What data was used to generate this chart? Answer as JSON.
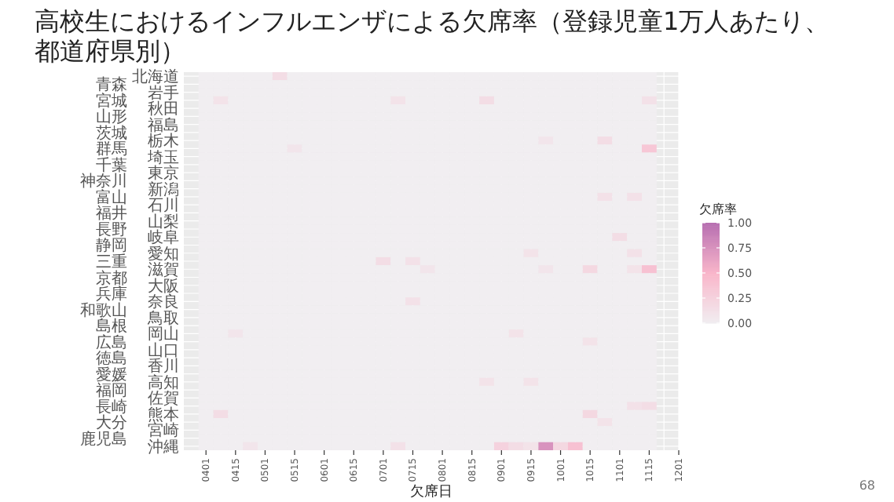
{
  "chart_data": {
    "type": "heatmap",
    "title": "高校生におけるインフルエンザによる欠席率（登録児童1万人あたり、都道府県別）",
    "xlabel": "欠席日",
    "clabel": "欠席率",
    "categories": [
      "0401",
      null,
      "0415",
      null,
      "0501",
      null,
      "0515",
      null,
      "0601",
      null,
      "0615",
      null,
      "0701",
      null,
      "0715",
      null,
      "0801",
      null,
      "0815",
      null,
      "0901",
      null,
      "0915",
      null,
      "1001",
      null,
      "1015",
      null,
      "1101",
      null,
      "1115",
      null,
      "1201"
    ],
    "y_categories": [
      "北海道",
      "青森",
      "岩手",
      "宮城",
      "秋田",
      "山形",
      "福島",
      "茨城",
      "栃木",
      "群馬",
      "埼玉",
      "千葉",
      "東京",
      "神奈川",
      "新潟",
      "富山",
      "石川",
      "福井",
      "山梨",
      "長野",
      "岐阜",
      "静岡",
      "愛知",
      "三重",
      "滋賀",
      "京都",
      "大阪",
      "兵庫",
      "奈良",
      "和歌山",
      "鳥取",
      "島根",
      "岡山",
      "広島",
      "山口",
      "徳島",
      "香川",
      "愛媛",
      "高知",
      "福岡",
      "佐賀",
      "長崎",
      "熊本",
      "大分",
      "宮崎",
      "鹿児島",
      "沖縄"
    ],
    "clim": [
      0,
      1
    ],
    "cticks": [
      {
        "value": 0,
        "label": "0.00"
      },
      {
        "value": 0.25,
        "label": "0.25"
      },
      {
        "value": 0.5,
        "label": "0.50"
      },
      {
        "value": 0.75,
        "label": "0.75"
      },
      {
        "value": 1,
        "label": "1.00"
      }
    ],
    "annotations": [
      "68"
    ],
    "grid": true,
    "cells": [
      [
        0,
        0,
        0,
        0,
        0,
        0.15,
        0,
        0,
        0,
        0,
        0,
        0,
        0,
        0,
        0,
        0,
        0,
        0,
        0,
        0,
        0,
        0,
        0,
        0,
        0,
        0,
        0,
        0,
        0,
        0,
        0,
        null,
        null
      ],
      [
        0,
        0,
        0,
        0,
        0,
        0,
        0,
        0,
        0,
        0,
        0,
        0,
        0,
        0,
        0,
        0,
        0,
        0,
        0,
        0,
        0,
        0,
        0,
        0,
        0,
        0,
        0,
        0,
        0,
        0,
        0,
        null,
        null
      ],
      [
        0,
        0,
        0,
        0,
        0,
        0,
        0,
        0,
        0,
        0,
        0,
        0,
        0,
        0,
        0,
        0,
        0,
        0,
        0,
        0,
        0,
        0,
        0,
        0,
        0,
        0,
        0,
        0,
        0,
        0,
        0,
        null,
        null
      ],
      [
        0,
        0.1,
        0,
        0,
        0,
        0,
        0,
        0,
        0,
        0,
        0,
        0,
        0,
        0.1,
        0,
        0,
        0,
        0,
        0,
        0.15,
        0,
        0,
        0,
        0,
        0,
        0,
        0,
        0,
        0,
        0,
        0.12,
        null,
        null
      ],
      [
        0,
        0,
        0,
        0,
        0,
        0,
        0,
        0,
        0,
        0,
        0,
        0,
        0,
        0,
        0,
        0,
        0,
        0,
        0,
        0,
        0,
        0,
        0,
        0,
        0,
        0,
        0,
        0,
        0,
        0,
        0,
        null,
        null
      ],
      [
        0,
        0,
        0,
        0,
        0,
        0,
        0,
        0,
        0,
        0,
        0,
        0,
        0,
        0,
        0,
        0,
        0,
        0,
        0,
        0,
        0,
        0,
        0,
        0,
        0,
        0,
        0,
        0,
        0,
        0,
        0,
        null,
        null
      ],
      [
        0,
        0,
        0,
        0,
        0,
        0,
        0,
        0,
        0,
        0,
        0,
        0,
        0,
        0,
        0,
        0,
        0,
        0,
        0,
        0,
        0,
        0,
        0,
        0,
        0,
        0,
        0,
        0,
        0,
        0,
        0,
        null,
        null
      ],
      [
        0,
        0,
        0,
        0,
        0,
        0,
        0,
        0,
        0,
        0,
        0,
        0,
        0,
        0,
        0,
        0,
        0,
        0,
        0,
        0,
        0,
        0,
        0,
        0,
        0,
        0,
        0,
        0,
        0,
        0,
        0,
        null,
        null
      ],
      [
        0,
        0,
        0,
        0,
        0,
        0,
        0,
        0,
        0,
        0,
        0,
        0,
        0,
        0,
        0,
        0,
        0,
        0,
        0,
        0,
        0,
        0,
        0,
        0.08,
        0,
        0,
        0,
        0.15,
        0,
        0,
        0,
        null,
        null
      ],
      [
        0,
        0,
        0,
        0,
        0,
        0,
        0.08,
        0,
        0,
        0,
        0,
        0,
        0,
        0,
        0,
        0,
        0,
        0,
        0,
        0,
        0,
        0,
        0,
        0,
        0,
        0,
        0,
        0,
        0,
        0,
        0.35,
        null,
        null
      ],
      [
        0,
        0,
        0,
        0,
        0,
        0,
        0,
        0,
        0,
        0,
        0,
        0,
        0,
        0,
        0,
        0,
        0,
        0,
        0,
        0,
        0,
        0,
        0,
        0,
        0,
        0,
        0,
        0,
        0,
        0,
        0,
        null,
        null
      ],
      [
        0,
        0,
        0,
        0,
        0,
        0,
        0,
        0,
        0,
        0,
        0,
        0,
        0,
        0,
        0,
        0,
        0,
        0,
        0,
        0,
        0,
        0,
        0,
        0,
        0,
        0,
        0,
        0,
        0,
        0,
        0,
        null,
        null
      ],
      [
        0,
        0,
        0,
        0,
        0,
        0,
        0,
        0,
        0,
        0,
        0,
        0,
        0,
        0,
        0,
        0,
        0,
        0,
        0,
        0,
        0,
        0,
        0,
        0,
        0,
        0,
        0,
        0,
        0,
        0,
        0,
        null,
        null
      ],
      [
        0,
        0,
        0,
        0,
        0,
        0,
        0,
        0,
        0,
        0,
        0,
        0,
        0,
        0,
        0,
        0,
        0,
        0,
        0,
        0,
        0,
        0,
        0,
        0,
        0,
        0,
        0,
        0,
        0,
        0,
        0,
        null,
        null
      ],
      [
        0,
        0,
        0,
        0,
        0,
        0,
        0,
        0,
        0,
        0,
        0,
        0,
        0,
        0,
        0,
        0,
        0,
        0,
        0,
        0,
        0,
        0,
        0,
        0,
        0,
        0,
        0,
        0,
        0,
        0,
        0,
        null,
        null
      ],
      [
        0,
        0,
        0,
        0,
        0,
        0,
        0,
        0,
        0,
        0,
        0,
        0,
        0,
        0,
        0,
        0,
        0,
        0,
        0,
        0,
        0,
        0,
        0,
        0,
        0,
        0,
        0,
        0.12,
        0,
        0.12,
        0,
        null,
        null
      ],
      [
        0,
        0,
        0,
        0,
        0,
        0,
        0,
        0,
        0,
        0,
        0,
        0,
        0,
        0,
        0,
        0,
        0,
        0,
        0,
        0,
        0,
        0,
        0,
        0,
        0,
        0,
        0,
        0,
        0,
        0,
        0,
        null,
        null
      ],
      [
        0,
        0,
        0,
        0,
        0,
        0,
        0,
        0,
        0,
        0,
        0,
        0,
        0,
        0,
        0,
        0,
        0,
        0,
        0,
        0,
        0,
        0,
        0,
        0,
        0,
        0,
        0,
        0,
        0,
        0,
        0,
        null,
        null
      ],
      [
        0,
        0,
        0,
        0,
        0,
        0,
        0,
        0,
        0,
        0,
        0,
        0,
        0,
        0,
        0,
        0,
        0,
        0,
        0,
        0,
        0,
        0,
        0,
        0,
        0,
        0,
        0,
        0,
        0,
        0,
        0,
        null,
        null
      ],
      [
        0,
        0,
        0,
        0,
        0,
        0,
        0,
        0,
        0,
        0,
        0,
        0,
        0,
        0,
        0,
        0,
        0,
        0,
        0,
        0,
        0,
        0,
        0,
        0,
        0,
        0,
        0,
        0,
        0,
        0,
        0,
        null,
        null
      ],
      [
        0,
        0,
        0,
        0,
        0,
        0,
        0,
        0,
        0,
        0,
        0,
        0,
        0,
        0,
        0,
        0,
        0,
        0,
        0,
        0,
        0,
        0,
        0,
        0,
        0,
        0,
        0,
        0,
        0.15,
        0,
        0,
        null,
        null
      ],
      [
        0,
        0,
        0,
        0,
        0,
        0,
        0,
        0,
        0,
        0,
        0,
        0,
        0,
        0,
        0,
        0,
        0,
        0,
        0,
        0,
        0,
        0,
        0,
        0,
        0,
        0,
        0,
        0,
        0,
        0,
        0,
        null,
        null
      ],
      [
        0,
        0,
        0,
        0,
        0,
        0,
        0,
        0,
        0,
        0,
        0,
        0,
        0,
        0,
        0,
        0,
        0,
        0,
        0,
        0,
        0,
        0,
        0.1,
        0,
        0,
        0,
        0,
        0,
        0,
        0.12,
        0,
        null,
        null
      ],
      [
        0,
        0,
        0,
        0,
        0,
        0,
        0,
        0,
        0,
        0,
        0,
        0,
        0.15,
        0,
        0.12,
        0,
        0,
        0,
        0,
        0,
        0,
        0,
        0,
        0,
        0,
        0,
        0,
        0,
        0,
        0,
        0,
        null,
        null
      ],
      [
        0,
        0,
        0,
        0,
        0,
        0,
        0,
        0,
        0,
        0,
        0,
        0,
        0,
        0,
        0,
        0.08,
        0,
        0,
        0,
        0,
        0,
        0,
        0,
        0.08,
        0,
        0,
        0.2,
        0,
        0,
        0.1,
        0.4,
        null,
        null
      ],
      [
        0,
        0,
        0,
        0,
        0,
        0,
        0,
        0,
        0,
        0,
        0,
        0,
        0,
        0,
        0,
        0,
        0,
        0,
        0,
        0,
        0,
        0,
        0,
        0,
        0,
        0,
        0,
        0,
        0,
        0,
        0,
        null,
        null
      ],
      [
        0,
        0,
        0,
        0,
        0,
        0,
        0,
        0,
        0,
        0,
        0,
        0,
        0,
        0,
        0,
        0,
        0,
        0,
        0,
        0,
        0,
        0,
        0,
        0,
        0,
        0,
        0,
        0,
        0,
        0,
        0,
        null,
        null
      ],
      [
        0,
        0,
        0,
        0,
        0,
        0,
        0,
        0,
        0,
        0,
        0,
        0,
        0,
        0,
        0,
        0,
        0,
        0,
        0,
        0,
        0,
        0,
        0,
        0,
        0,
        0,
        0,
        0,
        0,
        0,
        0,
        null,
        null
      ],
      [
        0,
        0,
        0,
        0,
        0,
        0,
        0,
        0,
        0,
        0,
        0,
        0,
        0,
        0,
        0.12,
        0,
        0,
        0,
        0,
        0,
        0,
        0,
        0,
        0,
        0,
        0,
        0,
        0,
        0,
        0,
        0,
        null,
        null
      ],
      [
        0,
        0,
        0,
        0,
        0,
        0,
        0,
        0,
        0,
        0,
        0,
        0,
        0,
        0,
        0,
        0,
        0,
        0,
        0,
        0,
        0,
        0,
        0,
        0,
        0,
        0,
        0,
        0,
        0,
        0,
        0,
        null,
        null
      ],
      [
        0,
        0,
        0,
        0,
        0,
        0,
        0,
        0,
        0,
        0,
        0,
        0,
        0,
        0,
        0,
        0,
        0,
        0,
        0,
        0,
        0,
        0,
        0,
        0,
        0,
        0,
        0,
        0,
        0,
        0,
        0,
        null,
        null
      ],
      [
        0,
        0,
        0,
        0,
        0,
        0,
        0,
        0,
        0,
        0,
        0,
        0,
        0,
        0,
        0,
        0,
        0,
        0,
        0,
        0,
        0,
        0,
        0,
        0,
        0,
        0,
        0,
        0,
        0,
        0,
        0,
        null,
        null
      ],
      [
        0,
        0,
        0.08,
        0,
        0,
        0,
        0,
        0,
        0,
        0,
        0,
        0,
        0,
        0,
        0,
        0,
        0,
        0,
        0,
        0,
        0,
        0.1,
        0,
        0,
        0,
        0,
        0,
        0,
        0,
        0,
        0,
        null,
        null
      ],
      [
        0,
        0,
        0,
        0,
        0,
        0,
        0,
        0,
        0,
        0,
        0,
        0,
        0,
        0,
        0,
        0,
        0,
        0,
        0,
        0,
        0,
        0,
        0,
        0,
        0,
        0,
        0.1,
        0,
        0,
        0,
        0,
        null,
        null
      ],
      [
        0,
        0,
        0,
        0,
        0,
        0,
        0,
        0,
        0,
        0,
        0,
        0,
        0,
        0,
        0,
        0,
        0,
        0,
        0,
        0,
        0,
        0,
        0,
        0,
        0,
        0,
        0,
        0,
        0,
        0,
        0,
        null,
        null
      ],
      [
        0,
        0,
        0,
        0,
        0,
        0,
        0,
        0,
        0,
        0,
        0,
        0,
        0,
        0,
        0,
        0,
        0,
        0,
        0,
        0,
        0,
        0,
        0,
        0,
        0,
        0,
        0,
        0,
        0,
        0,
        0,
        null,
        null
      ],
      [
        0,
        0,
        0,
        0,
        0,
        0,
        0,
        0,
        0,
        0,
        0,
        0,
        0,
        0,
        0,
        0,
        0,
        0,
        0,
        0,
        0,
        0,
        0,
        0,
        0,
        0,
        0,
        0,
        0,
        0,
        0,
        null,
        null
      ],
      [
        0,
        0,
        0,
        0,
        0,
        0,
        0,
        0,
        0,
        0,
        0,
        0,
        0,
        0,
        0,
        0,
        0,
        0,
        0,
        0,
        0,
        0,
        0,
        0,
        0,
        0,
        0,
        0,
        0,
        0,
        0,
        null,
        null
      ],
      [
        0,
        0,
        0,
        0,
        0,
        0,
        0,
        0,
        0,
        0,
        0,
        0,
        0,
        0,
        0,
        0,
        0,
        0,
        0,
        0.1,
        0,
        0,
        0.1,
        0,
        0,
        0,
        0,
        0,
        0,
        0,
        0,
        null,
        null
      ],
      [
        0,
        0,
        0,
        0,
        0,
        0,
        0,
        0,
        0,
        0,
        0,
        0,
        0,
        0,
        0,
        0,
        0,
        0,
        0,
        0,
        0,
        0,
        0,
        0,
        0,
        0,
        0,
        0,
        0,
        0,
        0,
        null,
        null
      ],
      [
        0,
        0,
        0,
        0,
        0,
        0,
        0,
        0,
        0,
        0,
        0,
        0,
        0,
        0,
        0,
        0,
        0,
        0,
        0,
        0,
        0,
        0,
        0,
        0,
        0,
        0,
        0,
        0,
        0,
        0,
        0,
        null,
        null
      ],
      [
        0,
        0,
        0,
        0,
        0,
        0,
        0,
        0,
        0,
        0,
        0,
        0,
        0,
        0,
        0,
        0,
        0,
        0,
        0,
        0,
        0,
        0,
        0,
        0,
        0,
        0,
        0,
        0,
        0,
        0.12,
        0.15,
        null,
        null
      ],
      [
        0,
        0.15,
        0,
        0,
        0,
        0,
        0,
        0,
        0,
        0,
        0,
        0,
        0,
        0,
        0,
        0,
        0,
        0,
        0,
        0,
        0,
        0,
        0,
        0,
        0,
        0,
        0.2,
        0,
        0,
        0,
        0,
        null,
        null
      ],
      [
        0,
        0,
        0,
        0,
        0,
        0,
        0,
        0,
        0,
        0,
        0,
        0,
        0,
        0,
        0,
        0,
        0,
        0,
        0,
        0,
        0,
        0,
        0,
        0,
        0,
        0,
        0,
        0.1,
        0,
        0,
        0,
        null,
        null
      ],
      [
        0,
        0,
        0,
        0,
        0,
        0,
        0,
        0,
        0,
        0,
        0,
        0,
        0,
        0,
        0,
        0,
        0,
        0,
        0,
        0,
        0,
        0,
        0,
        0,
        0,
        0,
        0,
        0,
        0,
        0,
        0,
        null,
        null
      ],
      [
        0,
        0,
        0,
        0,
        0,
        0,
        0,
        0,
        0,
        0,
        0,
        0,
        0,
        0,
        0,
        0,
        0,
        0,
        0,
        0,
        0,
        0,
        0,
        0,
        0,
        0,
        0,
        0,
        0,
        0,
        0,
        null,
        null
      ],
      [
        0,
        0,
        0,
        0.08,
        0,
        0,
        0,
        0,
        0,
        0,
        0,
        0,
        0,
        0.12,
        0,
        0,
        0,
        0,
        0,
        0,
        0.25,
        0.15,
        0.1,
        0.75,
        0.2,
        0.4,
        0,
        0,
        0,
        0,
        0,
        null,
        null
      ]
    ]
  }
}
